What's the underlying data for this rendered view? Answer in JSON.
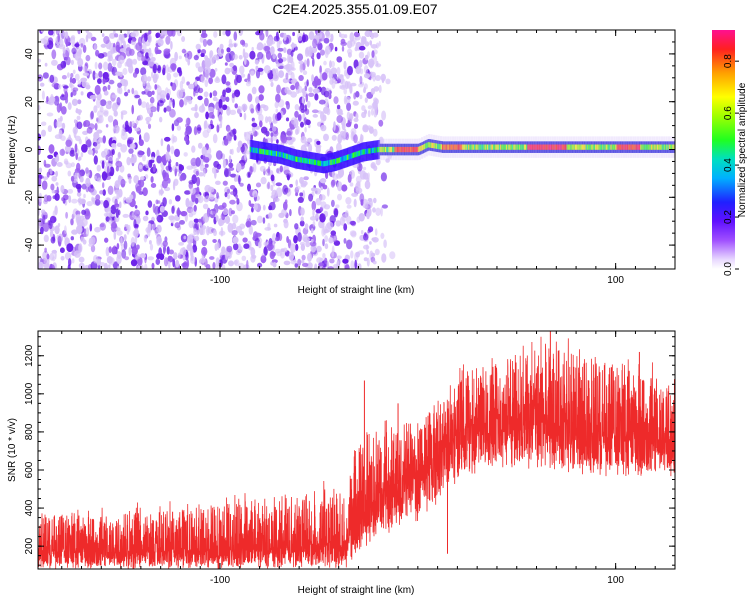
{
  "title": "C2E4.2025.355.01.09.E07",
  "colors": {
    "scatter_dense": "#6a1fe8",
    "scatter_mid": "#9a5cf0",
    "scatter_light": "#d7c2f8",
    "snr_line": "#ee2a2a",
    "axis": "#000000"
  },
  "colorbar": {
    "label": "Normalized spectral amplitude",
    "ticks": [
      0.0,
      0.2,
      0.4,
      0.6,
      0.8
    ],
    "tick_labels": [
      "0.0",
      "0.2",
      "0.4",
      "0.6",
      "0.8"
    ],
    "range": [
      0,
      0.92
    ]
  },
  "chart_data": [
    {
      "type": "heatmap",
      "name": "spectrogram",
      "xlabel": "Height of straight line (km)",
      "ylabel": "Frequency (Hz)",
      "xlim": [
        -192,
        130
      ],
      "ylim": [
        -50,
        50
      ],
      "xticks": [
        -100,
        100
      ],
      "xtick_labels": [
        "-100",
        "100"
      ],
      "yticks": [
        -40,
        -20,
        0,
        20,
        40
      ],
      "ytick_labels": [
        "-40",
        "-20",
        "0",
        "20",
        "40"
      ],
      "band": {
        "frequency_hz": 0,
        "onset_height_km": -85,
        "trail": [
          {
            "x": -85,
            "f": 0
          },
          {
            "x": -78,
            "f": -1
          },
          {
            "x": -70,
            "f": -2
          },
          {
            "x": -62,
            "f": -4
          },
          {
            "x": -55,
            "f": -5
          },
          {
            "x": -48,
            "f": -6
          },
          {
            "x": -42,
            "f": -5
          },
          {
            "x": -35,
            "f": -3
          },
          {
            "x": -28,
            "f": -1
          },
          {
            "x": -20,
            "f": 0
          },
          {
            "x": 0,
            "f": 0
          },
          {
            "x": 5,
            "f": 2
          },
          {
            "x": 12,
            "f": 1
          },
          {
            "x": 130,
            "f": 1
          }
        ],
        "peak_amplitude_segments": [
          {
            "x0": -12,
            "x1": 0,
            "amplitude": 0.88
          },
          {
            "x0": 12,
            "x1": 22,
            "amplitude": 0.85
          },
          {
            "x0": 55,
            "x1": 75,
            "amplitude": 0.9
          },
          {
            "x0": 100,
            "x1": 112,
            "amplitude": 0.88
          }
        ]
      },
      "noise": {
        "x0": -192,
        "x1": -20,
        "amplitude": 0.2
      }
    },
    {
      "type": "line",
      "name": "snr",
      "xlabel": "Height of straight line (km)",
      "ylabel": "SNR (10 * v/v)",
      "xlim": [
        -192,
        130
      ],
      "ylim": [
        80,
        1330
      ],
      "xticks": [
        -100,
        100
      ],
      "xtick_labels": [
        "-100",
        "100"
      ],
      "yticks": [
        200,
        400,
        600,
        800,
        1000,
        1200
      ],
      "ytick_labels": [
        "200",
        "400",
        "600",
        "800",
        "1000",
        "1200"
      ],
      "trend": [
        {
          "x": -192,
          "lo": 80,
          "mean": 180,
          "hi": 360
        },
        {
          "x": -150,
          "lo": 80,
          "mean": 170,
          "hi": 380
        },
        {
          "x": -100,
          "lo": 80,
          "mean": 175,
          "hi": 420
        },
        {
          "x": -60,
          "lo": 80,
          "mean": 200,
          "hi": 480
        },
        {
          "x": -35,
          "lo": 85,
          "mean": 230,
          "hi": 520
        },
        {
          "x": -30,
          "lo": 150,
          "mean": 340,
          "hi": 860
        },
        {
          "x": -20,
          "lo": 250,
          "mean": 460,
          "hi": 800
        },
        {
          "x": -5,
          "lo": 300,
          "mean": 560,
          "hi": 860
        },
        {
          "x": 10,
          "lo": 400,
          "mean": 680,
          "hi": 960
        },
        {
          "x": 25,
          "lo": 560,
          "mean": 820,
          "hi": 1120
        },
        {
          "x": 45,
          "lo": 600,
          "mean": 880,
          "hi": 1200
        },
        {
          "x": 70,
          "lo": 580,
          "mean": 820,
          "hi": 1250
        },
        {
          "x": 100,
          "lo": 560,
          "mean": 780,
          "hi": 1150
        },
        {
          "x": 130,
          "lo": 560,
          "mean": 760,
          "hi": 1100
        }
      ],
      "spikes": [
        {
          "x": -27,
          "y": 1070
        },
        {
          "x": 67,
          "y": 1330
        },
        {
          "x": 112,
          "y": 1220
        },
        {
          "x": -10,
          "y": 950
        },
        {
          "x": 15,
          "y": 160
        }
      ]
    }
  ]
}
